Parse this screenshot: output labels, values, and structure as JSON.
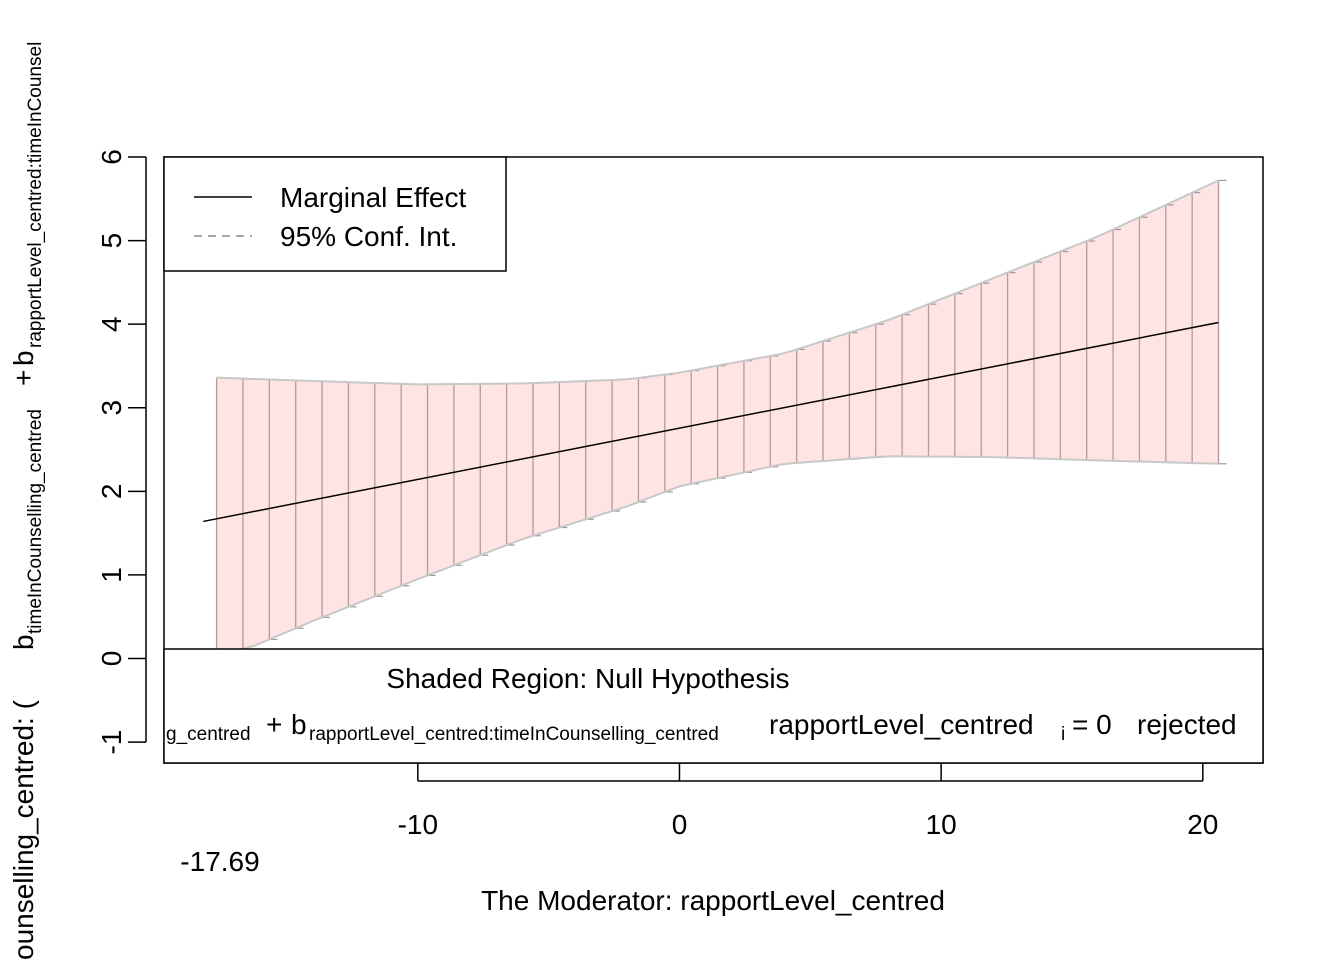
{
  "chart_data": {
    "type": "line",
    "xlabel": "The Moderator:  rapportLevel_centred",
    "ylabel_parts": {
      "prefix": "ounselling_centred:   (",
      "b1": "b",
      "b1_sub": "timeInCounselling_centred",
      "plus": "+",
      "b2": "b",
      "b2_sub": "rapportLevel_centred:timeInCounsel"
    },
    "xlim": [
      -19.7,
      22.3
    ],
    "ylim": [
      -1.25,
      6
    ],
    "x_ticks": [
      -10,
      0,
      10,
      20
    ],
    "x_tick_labels": [
      "-10",
      "0",
      "10",
      "20"
    ],
    "y_ticks": [
      -1,
      0,
      1,
      2,
      3,
      4,
      5,
      6
    ],
    "y_tick_labels": [
      "-1",
      "0",
      "1",
      "2",
      "3",
      "4",
      "5",
      "6"
    ],
    "x_min_annotation": "-17.69",
    "x_min_value": -17.69,
    "x_max_value": 20.6,
    "effect_endpoints": {
      "x": [
        -18.2,
        20.6
      ],
      "y": [
        1.64,
        4.02
      ]
    },
    "ci_upper": {
      "x": [
        -17.7,
        -14,
        -10,
        -6,
        -2,
        0,
        4,
        8,
        12,
        16,
        20.6
      ],
      "y": [
        3.36,
        3.32,
        3.28,
        3.29,
        3.34,
        3.42,
        3.65,
        4.05,
        4.55,
        5.05,
        5.72
      ]
    },
    "ci_lower": {
      "x": [
        -17.7,
        -16.5,
        -14,
        -10,
        -6,
        -2,
        0,
        4,
        8,
        12,
        16,
        20.6
      ],
      "y": [
        0.07,
        0.12,
        0.45,
        0.95,
        1.43,
        1.82,
        2.06,
        2.33,
        2.42,
        2.41,
        2.37,
        2.33
      ]
    },
    "band_color": "#ffe4e4",
    "band_bar_color": "#b59a9a",
    "band_edge_color": "#c8c8c8",
    "effect_color": "#000000",
    "annotation_color": "#ee4444",
    "legend": {
      "position": "top-left",
      "entries": [
        {
          "label": "Marginal Effect",
          "style": "solid"
        },
        {
          "label": "95% Conf. Int.",
          "style": "dashed"
        }
      ]
    },
    "null_box": {
      "title": "Shaded Region: Null Hypothesis",
      "expr": {
        "t1": "g_centred",
        "plus": "+",
        "b": "b",
        "b_sub": "rapportLevel_centred:timeInCounselling_centred",
        "mod": "rapportLevel_centred",
        "mod_sub": "i",
        "eq": "= 0",
        "rej": "rejected"
      }
    }
  }
}
